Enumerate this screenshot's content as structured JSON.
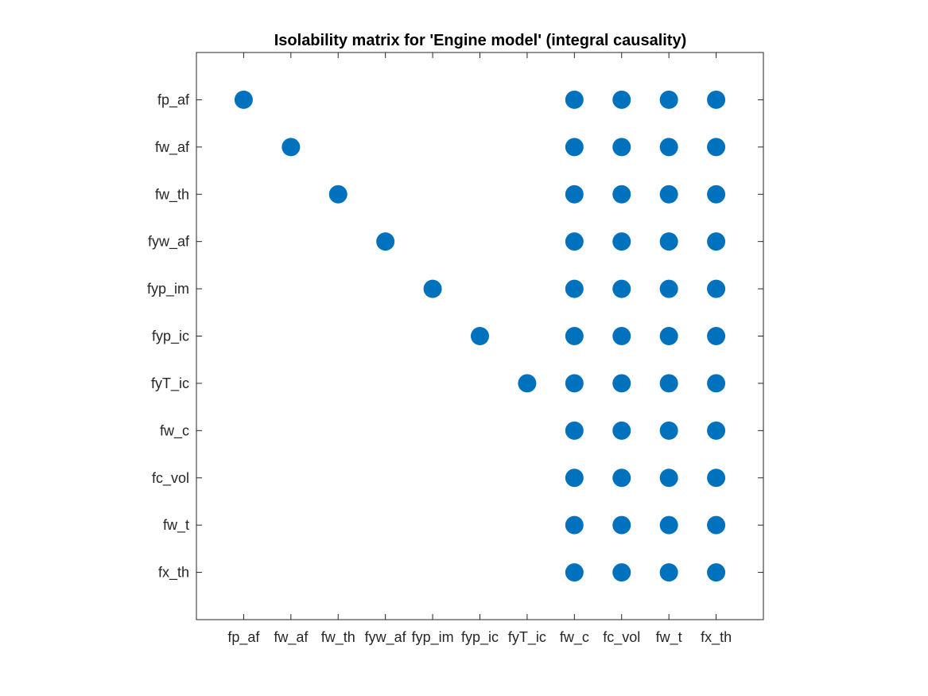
{
  "chart_data": {
    "type": "scatter",
    "title": "Isolability matrix for 'Engine model' (integral causality)",
    "xlabel": "",
    "ylabel": "",
    "x_categories": [
      "fp_af",
      "fw_af",
      "fw_th",
      "fyw_af",
      "fyp_im",
      "fyp_ic",
      "fyT_ic",
      "fw_c",
      "fc_vol",
      "fw_t",
      "fx_th"
    ],
    "y_categories": [
      "fp_af",
      "fw_af",
      "fw_th",
      "fyw_af",
      "fyp_im",
      "fyp_ic",
      "fyT_ic",
      "fw_c",
      "fc_vol",
      "fw_t",
      "fx_th"
    ],
    "xlim": [
      0,
      12
    ],
    "ylim": [
      0,
      12
    ],
    "grid": false,
    "marker_color": "#0072BD",
    "axis_color": "#262626",
    "points": [
      {
        "row": "fp_af",
        "col": "fp_af"
      },
      {
        "row": "fp_af",
        "col": "fw_c"
      },
      {
        "row": "fp_af",
        "col": "fc_vol"
      },
      {
        "row": "fp_af",
        "col": "fw_t"
      },
      {
        "row": "fp_af",
        "col": "fx_th"
      },
      {
        "row": "fw_af",
        "col": "fw_af"
      },
      {
        "row": "fw_af",
        "col": "fw_c"
      },
      {
        "row": "fw_af",
        "col": "fc_vol"
      },
      {
        "row": "fw_af",
        "col": "fw_t"
      },
      {
        "row": "fw_af",
        "col": "fx_th"
      },
      {
        "row": "fw_th",
        "col": "fw_th"
      },
      {
        "row": "fw_th",
        "col": "fw_c"
      },
      {
        "row": "fw_th",
        "col": "fc_vol"
      },
      {
        "row": "fw_th",
        "col": "fw_t"
      },
      {
        "row": "fw_th",
        "col": "fx_th"
      },
      {
        "row": "fyw_af",
        "col": "fyw_af"
      },
      {
        "row": "fyw_af",
        "col": "fw_c"
      },
      {
        "row": "fyw_af",
        "col": "fc_vol"
      },
      {
        "row": "fyw_af",
        "col": "fw_t"
      },
      {
        "row": "fyw_af",
        "col": "fx_th"
      },
      {
        "row": "fyp_im",
        "col": "fyp_im"
      },
      {
        "row": "fyp_im",
        "col": "fw_c"
      },
      {
        "row": "fyp_im",
        "col": "fc_vol"
      },
      {
        "row": "fyp_im",
        "col": "fw_t"
      },
      {
        "row": "fyp_im",
        "col": "fx_th"
      },
      {
        "row": "fyp_ic",
        "col": "fyp_ic"
      },
      {
        "row": "fyp_ic",
        "col": "fw_c"
      },
      {
        "row": "fyp_ic",
        "col": "fc_vol"
      },
      {
        "row": "fyp_ic",
        "col": "fw_t"
      },
      {
        "row": "fyp_ic",
        "col": "fx_th"
      },
      {
        "row": "fyT_ic",
        "col": "fyT_ic"
      },
      {
        "row": "fyT_ic",
        "col": "fw_c"
      },
      {
        "row": "fyT_ic",
        "col": "fc_vol"
      },
      {
        "row": "fyT_ic",
        "col": "fw_t"
      },
      {
        "row": "fyT_ic",
        "col": "fx_th"
      },
      {
        "row": "fw_c",
        "col": "fw_c"
      },
      {
        "row": "fw_c",
        "col": "fc_vol"
      },
      {
        "row": "fw_c",
        "col": "fw_t"
      },
      {
        "row": "fw_c",
        "col": "fx_th"
      },
      {
        "row": "fc_vol",
        "col": "fw_c"
      },
      {
        "row": "fc_vol",
        "col": "fc_vol"
      },
      {
        "row": "fc_vol",
        "col": "fw_t"
      },
      {
        "row": "fc_vol",
        "col": "fx_th"
      },
      {
        "row": "fw_t",
        "col": "fw_c"
      },
      {
        "row": "fw_t",
        "col": "fc_vol"
      },
      {
        "row": "fw_t",
        "col": "fw_t"
      },
      {
        "row": "fw_t",
        "col": "fx_th"
      },
      {
        "row": "fx_th",
        "col": "fw_c"
      },
      {
        "row": "fx_th",
        "col": "fc_vol"
      },
      {
        "row": "fx_th",
        "col": "fw_t"
      },
      {
        "row": "fx_th",
        "col": "fx_th"
      }
    ]
  }
}
